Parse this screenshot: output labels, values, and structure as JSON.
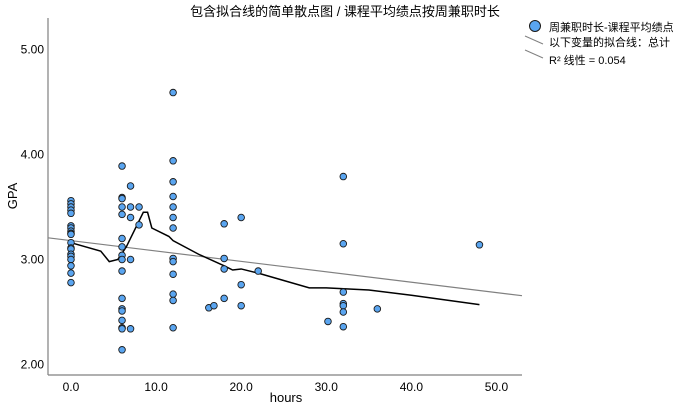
{
  "chart_data": {
    "type": "scatter",
    "title": "包含拟合线的简单散点图 / 课程平均绩点按周兼职时长",
    "xlabel": "hours",
    "ylabel": "GPA",
    "xlim": [
      -2.7,
      53
    ],
    "ylim": [
      1.9,
      5.3
    ],
    "xticks": [
      0,
      10,
      20,
      30,
      40,
      50
    ],
    "xtick_labels": [
      "0.0",
      "10.0",
      "20.0",
      "30.0",
      "40.0",
      "50.0"
    ],
    "yticks": [
      2,
      3,
      4,
      5
    ],
    "ytick_labels": [
      "2.00",
      "3.00",
      "4.00",
      "5.00"
    ],
    "grid": false,
    "legend": {
      "position": "top-right",
      "series_label": "周兼职时长-课程平均绩点",
      "fit_label": "以下变量的拟合线：总计",
      "r2_label": "R² 线性 = 0.054"
    },
    "colors": {
      "marker": "#5aa5f0",
      "marker_edge": "#1a1a1a",
      "fit": "#808080",
      "loess": "#000000",
      "axis": "#808080"
    },
    "points": [
      [
        0,
        3.56
      ],
      [
        0,
        3.53
      ],
      [
        0,
        3.5
      ],
      [
        0,
        3.47
      ],
      [
        0,
        3.44
      ],
      [
        0,
        3.32
      ],
      [
        0,
        3.3
      ],
      [
        0,
        3.27
      ],
      [
        0,
        3.25
      ],
      [
        0,
        3.24
      ],
      [
        0,
        3.16
      ],
      [
        0,
        3.11
      ],
      [
        0,
        3.1
      ],
      [
        0,
        3.05
      ],
      [
        0,
        3.03
      ],
      [
        0,
        3.0
      ],
      [
        0,
        2.94
      ],
      [
        0,
        2.87
      ],
      [
        0,
        2.78
      ],
      [
        6,
        3.89
      ],
      [
        6,
        3.59
      ],
      [
        6,
        3.58
      ],
      [
        6,
        3.5
      ],
      [
        6,
        3.43
      ],
      [
        6,
        3.2
      ],
      [
        6,
        3.12
      ],
      [
        6,
        3.04
      ],
      [
        6,
        3.0
      ],
      [
        6,
        2.89
      ],
      [
        6,
        2.63
      ],
      [
        6,
        2.53
      ],
      [
        6,
        2.51
      ],
      [
        6,
        2.42
      ],
      [
        6,
        2.35
      ],
      [
        6,
        2.34
      ],
      [
        6,
        2.14
      ],
      [
        7,
        3.7
      ],
      [
        7,
        3.5
      ],
      [
        7,
        3.4
      ],
      [
        7,
        3.0
      ],
      [
        7,
        2.34
      ],
      [
        8,
        3.5
      ],
      [
        8,
        3.33
      ],
      [
        12,
        4.59
      ],
      [
        12,
        3.94
      ],
      [
        12,
        3.74
      ],
      [
        12,
        3.6
      ],
      [
        12,
        3.5
      ],
      [
        12,
        3.4
      ],
      [
        12,
        3.3
      ],
      [
        12,
        3.01
      ],
      [
        12,
        2.98
      ],
      [
        12,
        2.86
      ],
      [
        12,
        2.67
      ],
      [
        12,
        2.61
      ],
      [
        12,
        2.35
      ],
      [
        16.2,
        2.54
      ],
      [
        16.8,
        2.56
      ],
      [
        18,
        3.34
      ],
      [
        18,
        3.01
      ],
      [
        18,
        2.91
      ],
      [
        18,
        2.63
      ],
      [
        20,
        3.4
      ],
      [
        20,
        2.76
      ],
      [
        20,
        2.56
      ],
      [
        22,
        2.89
      ],
      [
        30.2,
        2.41
      ],
      [
        32,
        3.79
      ],
      [
        32,
        3.15
      ],
      [
        32,
        2.69
      ],
      [
        32,
        2.58
      ],
      [
        32,
        2.56
      ],
      [
        32,
        2.5
      ],
      [
        32,
        2.36
      ],
      [
        36,
        2.53
      ],
      [
        48,
        3.14
      ]
    ],
    "linear_fit": {
      "intercept": 3.18,
      "slope": -0.0099,
      "r_squared": 0.054
    },
    "loess": [
      [
        0,
        3.16
      ],
      [
        3.5,
        3.08
      ],
      [
        4.5,
        2.98
      ],
      [
        5.5,
        3.0
      ],
      [
        6.5,
        3.12
      ],
      [
        8.5,
        3.45
      ],
      [
        9,
        3.45
      ],
      [
        9.5,
        3.3
      ],
      [
        11.5,
        3.22
      ],
      [
        12,
        3.18
      ],
      [
        15,
        3.05
      ],
      [
        18,
        2.94
      ],
      [
        19,
        2.9
      ],
      [
        20,
        2.91
      ],
      [
        22,
        2.87
      ],
      [
        25,
        2.8
      ],
      [
        28,
        2.73
      ],
      [
        30,
        2.73
      ],
      [
        35,
        2.71
      ],
      [
        40,
        2.66
      ],
      [
        48,
        2.57
      ]
    ]
  }
}
